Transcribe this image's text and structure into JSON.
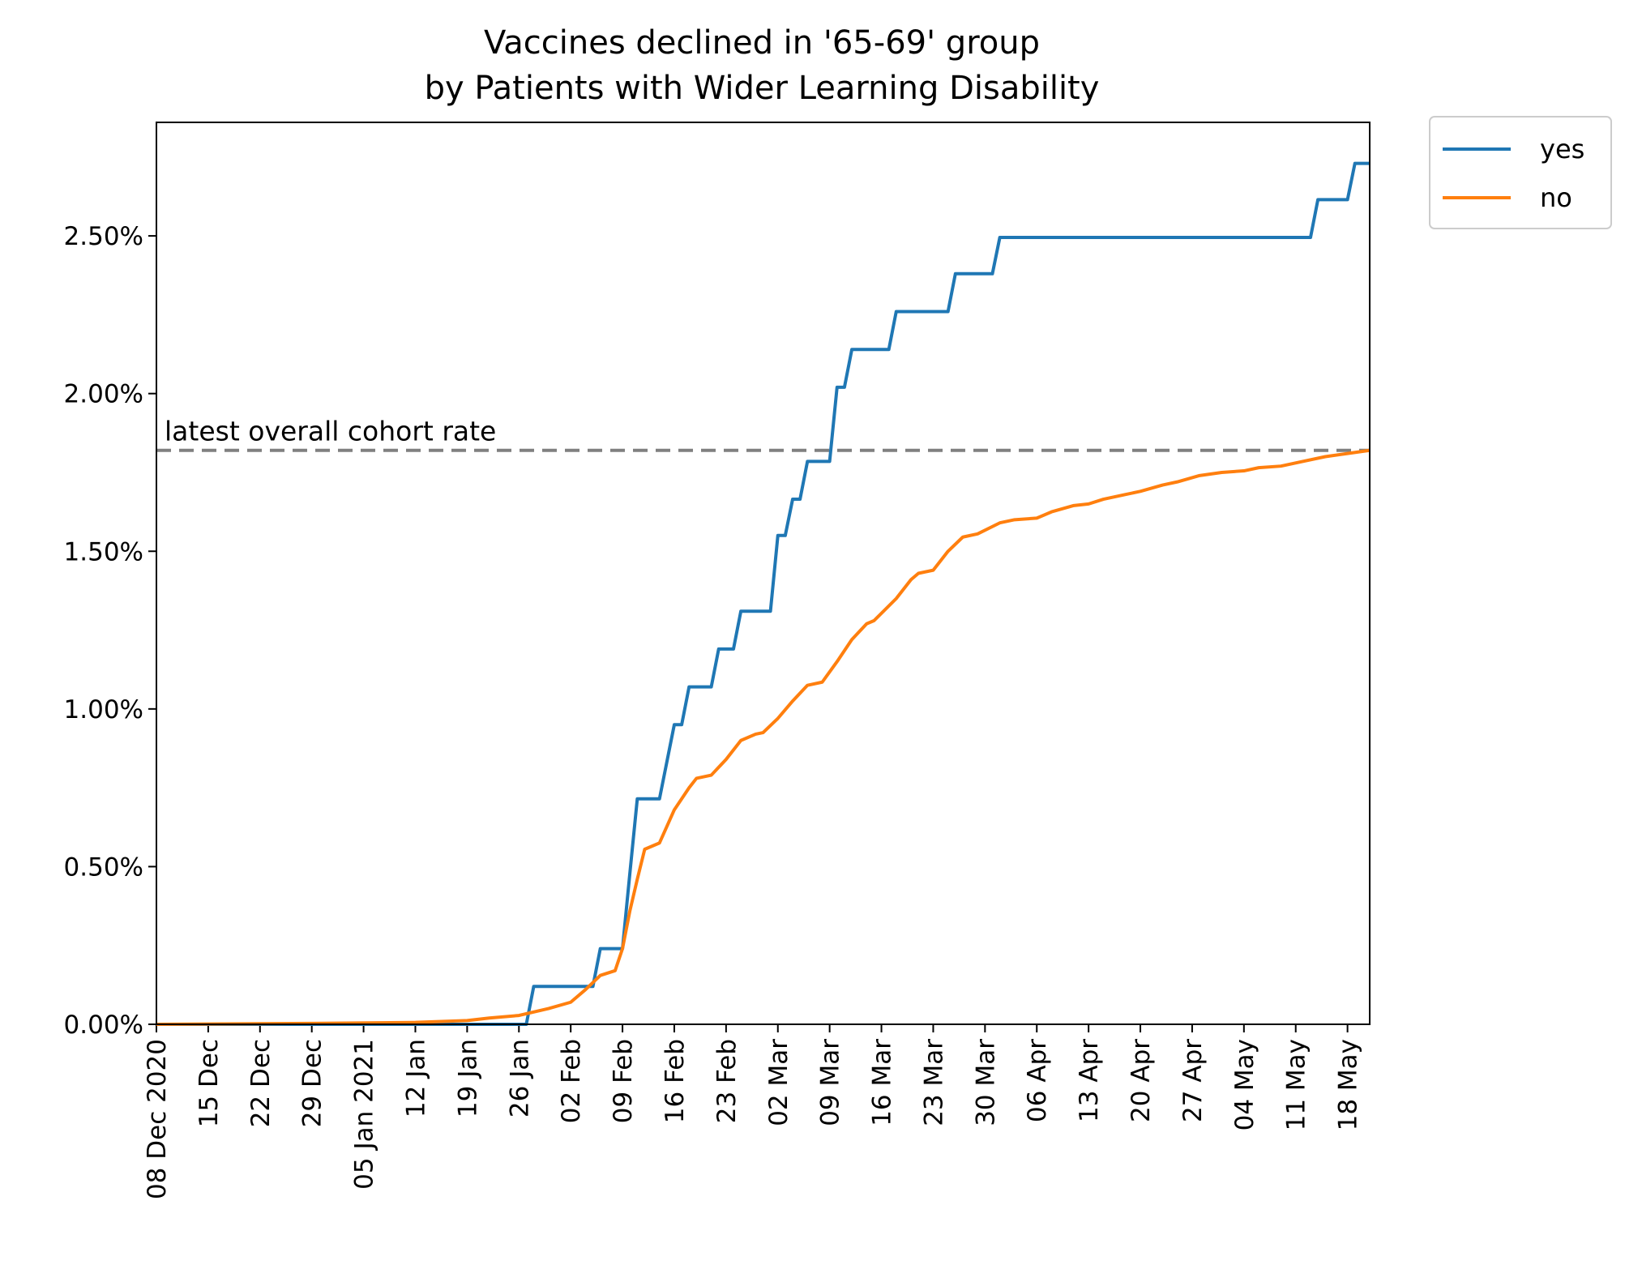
{
  "chart_data": {
    "type": "line",
    "title_lines": [
      "Vaccines declined in '65-69' group",
      "by Patients with Wider Learning Disability"
    ],
    "xlabel": "",
    "ylabel": "",
    "x_range": [
      "2020-12-08",
      "2021-05-21"
    ],
    "y_range": [
      0,
      2.86
    ],
    "y_ticks": [
      0,
      0.5,
      1.0,
      1.5,
      2.0,
      2.5
    ],
    "y_tick_labels": [
      "0.00%",
      "0.50%",
      "1.00%",
      "1.50%",
      "2.00%",
      "2.50%"
    ],
    "x_ticks": [
      "2020-12-08",
      "2020-12-15",
      "2020-12-22",
      "2020-12-29",
      "2021-01-05",
      "2021-01-12",
      "2021-01-19",
      "2021-01-26",
      "2021-02-02",
      "2021-02-09",
      "2021-02-16",
      "2021-02-23",
      "2021-03-02",
      "2021-03-09",
      "2021-03-16",
      "2021-03-23",
      "2021-03-30",
      "2021-04-06",
      "2021-04-13",
      "2021-04-20",
      "2021-04-27",
      "2021-05-04",
      "2021-05-11",
      "2021-05-18"
    ],
    "x_tick_labels": [
      "08 Dec 2020",
      "15 Dec",
      "22 Dec",
      "29 Dec",
      "05 Jan 2021",
      "12 Jan",
      "19 Jan",
      "26 Jan",
      "02 Feb",
      "09 Feb",
      "16 Feb",
      "23 Feb",
      "02 Mar",
      "09 Mar",
      "16 Mar",
      "23 Mar",
      "30 Mar",
      "06 Apr",
      "13 Apr",
      "20 Apr",
      "27 Apr",
      "04 May",
      "11 May",
      "18 May"
    ],
    "grid": false,
    "legend_position": "outside-top-right",
    "reference_line": {
      "value": 1.82,
      "label": "latest overall cohort rate",
      "color": "#808080",
      "style": "dashed"
    },
    "series": [
      {
        "name": "yes",
        "color": "#1f77b4",
        "step": true,
        "points": [
          [
            "2020-12-08",
            0
          ],
          [
            "2021-01-27",
            0
          ],
          [
            "2021-01-28",
            0.12
          ],
          [
            "2021-02-04",
            0.12
          ],
          [
            "2021-02-05",
            0.12
          ],
          [
            "2021-02-06",
            0.24
          ],
          [
            "2021-02-08",
            0.24
          ],
          [
            "2021-02-09",
            0.24
          ],
          [
            "2021-02-10",
            0.48
          ],
          [
            "2021-02-11",
            0.715
          ],
          [
            "2021-02-14",
            0.715
          ],
          [
            "2021-02-16",
            0.95
          ],
          [
            "2021-02-17",
            0.95
          ],
          [
            "2021-02-18",
            1.07
          ],
          [
            "2021-02-21",
            1.07
          ],
          [
            "2021-02-22",
            1.19
          ],
          [
            "2021-02-24",
            1.19
          ],
          [
            "2021-02-25",
            1.31
          ],
          [
            "2021-02-28",
            1.31
          ],
          [
            "2021-03-01",
            1.31
          ],
          [
            "2021-03-02",
            1.55
          ],
          [
            "2021-03-03",
            1.55
          ],
          [
            "2021-03-04",
            1.665
          ],
          [
            "2021-03-05",
            1.665
          ],
          [
            "2021-03-06",
            1.785
          ],
          [
            "2021-03-08",
            1.785
          ],
          [
            "2021-03-09",
            1.785
          ],
          [
            "2021-03-10",
            2.02
          ],
          [
            "2021-03-11",
            2.02
          ],
          [
            "2021-03-12",
            2.14
          ],
          [
            "2021-03-17",
            2.14
          ],
          [
            "2021-03-18",
            2.26
          ],
          [
            "2021-03-25",
            2.26
          ],
          [
            "2021-03-26",
            2.38
          ],
          [
            "2021-03-31",
            2.38
          ],
          [
            "2021-04-01",
            2.495
          ],
          [
            "2021-05-13",
            2.495
          ],
          [
            "2021-05-14",
            2.615
          ],
          [
            "2021-05-18",
            2.615
          ],
          [
            "2021-05-19",
            2.73
          ],
          [
            "2021-05-21",
            2.73
          ]
        ]
      },
      {
        "name": "no",
        "color": "#ff7f0e",
        "step": false,
        "points": [
          [
            "2020-12-08",
            0
          ],
          [
            "2020-12-29",
            0.003
          ],
          [
            "2021-01-12",
            0.006
          ],
          [
            "2021-01-19",
            0.012
          ],
          [
            "2021-01-22",
            0.02
          ],
          [
            "2021-01-26",
            0.028
          ],
          [
            "2021-01-30",
            0.05
          ],
          [
            "2021-02-02",
            0.07
          ],
          [
            "2021-02-04",
            0.11
          ],
          [
            "2021-02-06",
            0.155
          ],
          [
            "2021-02-08",
            0.17
          ],
          [
            "2021-02-09",
            0.24
          ],
          [
            "2021-02-10",
            0.36
          ],
          [
            "2021-02-11",
            0.46
          ],
          [
            "2021-02-12",
            0.555
          ],
          [
            "2021-02-14",
            0.575
          ],
          [
            "2021-02-16",
            0.68
          ],
          [
            "2021-02-18",
            0.75
          ],
          [
            "2021-02-19",
            0.78
          ],
          [
            "2021-02-21",
            0.79
          ],
          [
            "2021-02-23",
            0.84
          ],
          [
            "2021-02-25",
            0.9
          ],
          [
            "2021-02-27",
            0.92
          ],
          [
            "2021-02-28",
            0.925
          ],
          [
            "2021-03-02",
            0.97
          ],
          [
            "2021-03-04",
            1.025
          ],
          [
            "2021-03-06",
            1.075
          ],
          [
            "2021-03-08",
            1.085
          ],
          [
            "2021-03-10",
            1.15
          ],
          [
            "2021-03-12",
            1.22
          ],
          [
            "2021-03-14",
            1.27
          ],
          [
            "2021-03-15",
            1.28
          ],
          [
            "2021-03-18",
            1.35
          ],
          [
            "2021-03-20",
            1.41
          ],
          [
            "2021-03-21",
            1.43
          ],
          [
            "2021-03-23",
            1.44
          ],
          [
            "2021-03-25",
            1.5
          ],
          [
            "2021-03-27",
            1.545
          ],
          [
            "2021-03-29",
            1.555
          ],
          [
            "2021-04-01",
            1.59
          ],
          [
            "2021-04-03",
            1.6
          ],
          [
            "2021-04-06",
            1.605
          ],
          [
            "2021-04-08",
            1.625
          ],
          [
            "2021-04-11",
            1.645
          ],
          [
            "2021-04-13",
            1.65
          ],
          [
            "2021-04-15",
            1.665
          ],
          [
            "2021-04-18",
            1.68
          ],
          [
            "2021-04-20",
            1.69
          ],
          [
            "2021-04-23",
            1.71
          ],
          [
            "2021-04-25",
            1.72
          ],
          [
            "2021-04-28",
            1.74
          ],
          [
            "2021-05-01",
            1.75
          ],
          [
            "2021-05-04",
            1.755
          ],
          [
            "2021-05-06",
            1.765
          ],
          [
            "2021-05-09",
            1.77
          ],
          [
            "2021-05-12",
            1.785
          ],
          [
            "2021-05-15",
            1.8
          ],
          [
            "2021-05-18",
            1.81
          ],
          [
            "2021-05-21",
            1.82
          ]
        ]
      }
    ]
  }
}
